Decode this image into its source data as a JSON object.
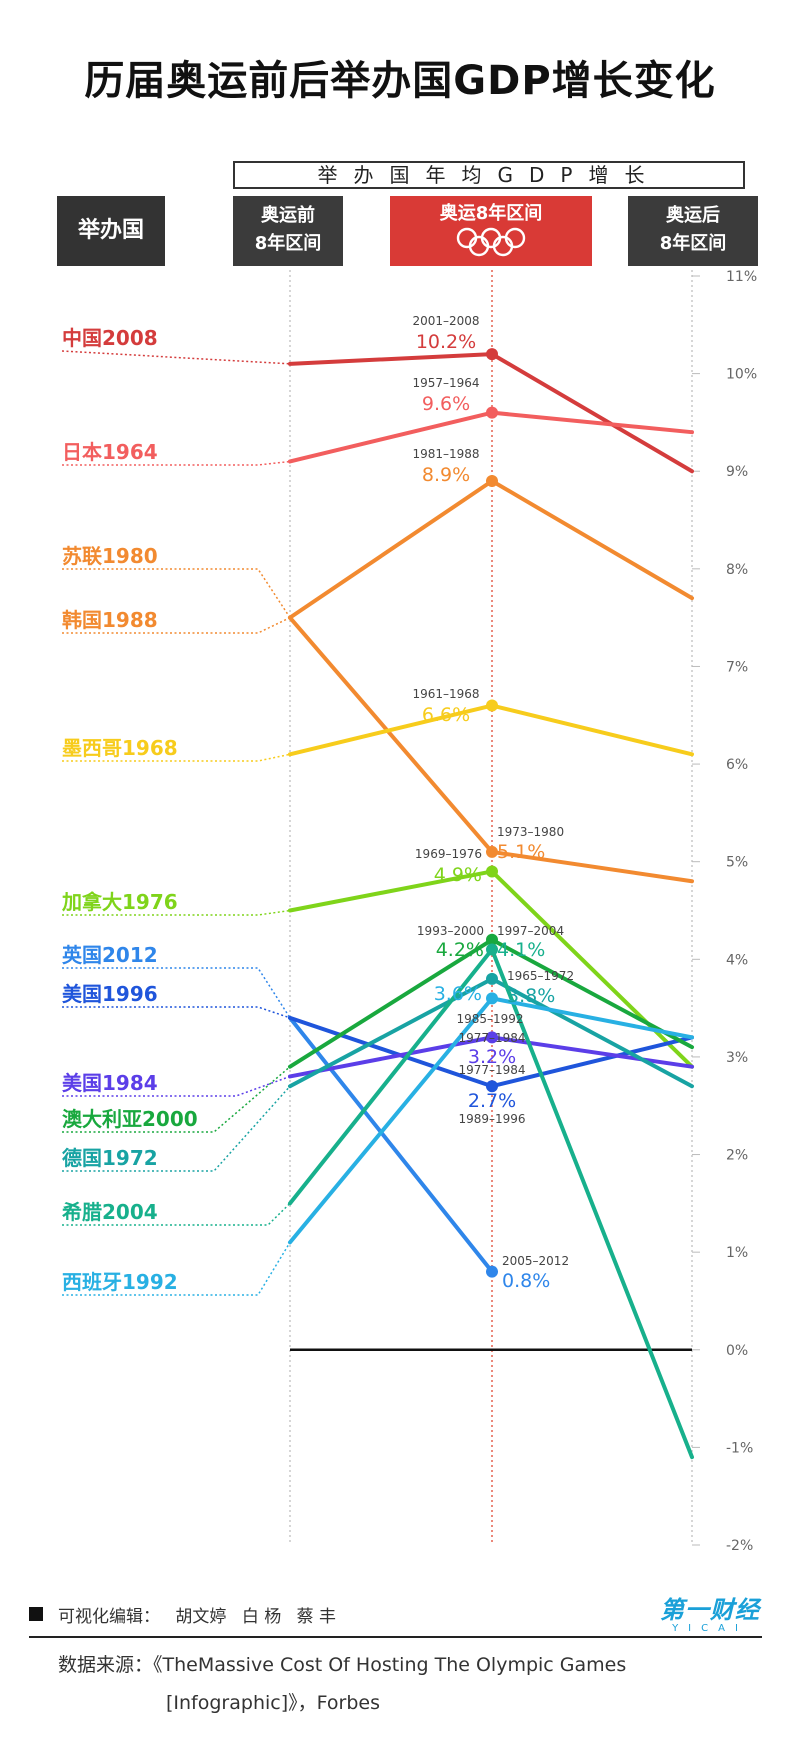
{
  "title": "历届奥运前后举办国GDP增长变化",
  "header": {
    "growth_label": "举办国年均GDP增长",
    "host_label": "举办国",
    "before_line1": "奥运前",
    "before_line2": "8年区间",
    "during_label": "奥运8年区间",
    "after_line1": "奥运后",
    "after_line2": "8年区间"
  },
  "colors": {
    "china": "#d43c3c",
    "japan": "#f25e5e",
    "ussr": "#f28a30",
    "korea": "#f28a30",
    "mexico": "#f7cc1c",
    "canada": "#7fd41a",
    "uk": "#2f86ea",
    "us1996": "#1f55db",
    "us1984": "#5b3ee8",
    "aus": "#19a83e",
    "ger": "#18a3a3",
    "gre": "#17b08c",
    "spa": "#28b0e3",
    "grid": "#bbbbbb",
    "zero": "#111111",
    "red_dots": "#e66a5a"
  },
  "chart_data": {
    "type": "line",
    "title": "历届奥运前后举办国GDP增长变化",
    "ylabel": "举办国年均GDP增长",
    "categories": [
      "奥运前8年区间",
      "奥运8年区间",
      "奥运后8年区间"
    ],
    "ylim": [
      -2,
      11
    ],
    "yticks": [
      11,
      10,
      9,
      8,
      7,
      6,
      5,
      4,
      3,
      2,
      1,
      0,
      -1,
      -2
    ],
    "ytick_labels": [
      "11%",
      "10%",
      "9%",
      "8%",
      "7%",
      "6%",
      "5%",
      "4%",
      "3%",
      "2%",
      "1%",
      "0%",
      "-1%",
      "-2%"
    ],
    "series": [
      {
        "key": "china",
        "name": "中国2008",
        "values": [
          10.1,
          10.2,
          9.0
        ],
        "period": "2001–2008",
        "label": "10.2%"
      },
      {
        "key": "japan",
        "name": "日本1964",
        "values": [
          9.1,
          9.6,
          9.4
        ],
        "period": "1957–1964",
        "label": "9.6%"
      },
      {
        "key": "korea",
        "name": "韩国1988",
        "values": [
          7.5,
          8.9,
          7.7
        ],
        "period": "1981–1988",
        "label": "8.9%"
      },
      {
        "key": "ussr",
        "name": "苏联1980",
        "values": [
          7.5,
          5.1,
          4.8
        ],
        "period": "1973–1980",
        "label": "5.1%"
      },
      {
        "key": "mexico",
        "name": "墨西哥1968",
        "values": [
          6.1,
          6.6,
          6.1
        ],
        "period": "1961–1968",
        "label": "6.6%"
      },
      {
        "key": "canada",
        "name": "加拿大1976",
        "values": [
          4.5,
          4.9,
          2.9
        ],
        "period": "1969–1976",
        "label": "4.9%"
      },
      {
        "key": "uk",
        "name": "英国2012",
        "values": [
          3.4,
          0.8,
          null
        ],
        "period": "2005–2012",
        "label": "0.8%"
      },
      {
        "key": "us1996",
        "name": "美国1996",
        "values": [
          3.4,
          2.7,
          3.2
        ],
        "period": "1989–1996",
        "label": ""
      },
      {
        "key": "us1984",
        "name": "美国1984",
        "values": [
          2.8,
          3.2,
          2.9
        ],
        "period": "1977–1984",
        "label": "3.2%"
      },
      {
        "key": "aus",
        "name": "澳大利亚2000",
        "values": [
          2.9,
          4.2,
          3.1
        ],
        "period": "1993–2000",
        "label": "4.2%"
      },
      {
        "key": "ger",
        "name": "德国1972",
        "values": [
          2.7,
          3.8,
          2.7
        ],
        "period": "1965–1972",
        "label": "3.8%"
      },
      {
        "key": "gre",
        "name": "希腊2004",
        "values": [
          1.5,
          4.1,
          -1.1
        ],
        "period": "1997–2004",
        "label": "4.1%"
      },
      {
        "key": "spa",
        "name": "西班牙1992",
        "values": [
          1.1,
          3.6,
          3.2
        ],
        "period": "1985–1992",
        "label": "3.6%"
      }
    ],
    "extra_labels": {
      "us1996_label": "2.7%",
      "us1984_period": "1977–1984"
    }
  },
  "footer": {
    "editor_label": "可视化编辑：",
    "editors": [
      "胡文婷",
      "白 杨",
      "蔡 丰"
    ],
    "source_prefix": "数据来源：",
    "source_line1": "《TheMassive Cost Of Hosting The Olympic Games",
    "source_line2": "[Infographic]》，Forbes",
    "brand_cn": "第一财经",
    "brand_en": "YICAI"
  }
}
